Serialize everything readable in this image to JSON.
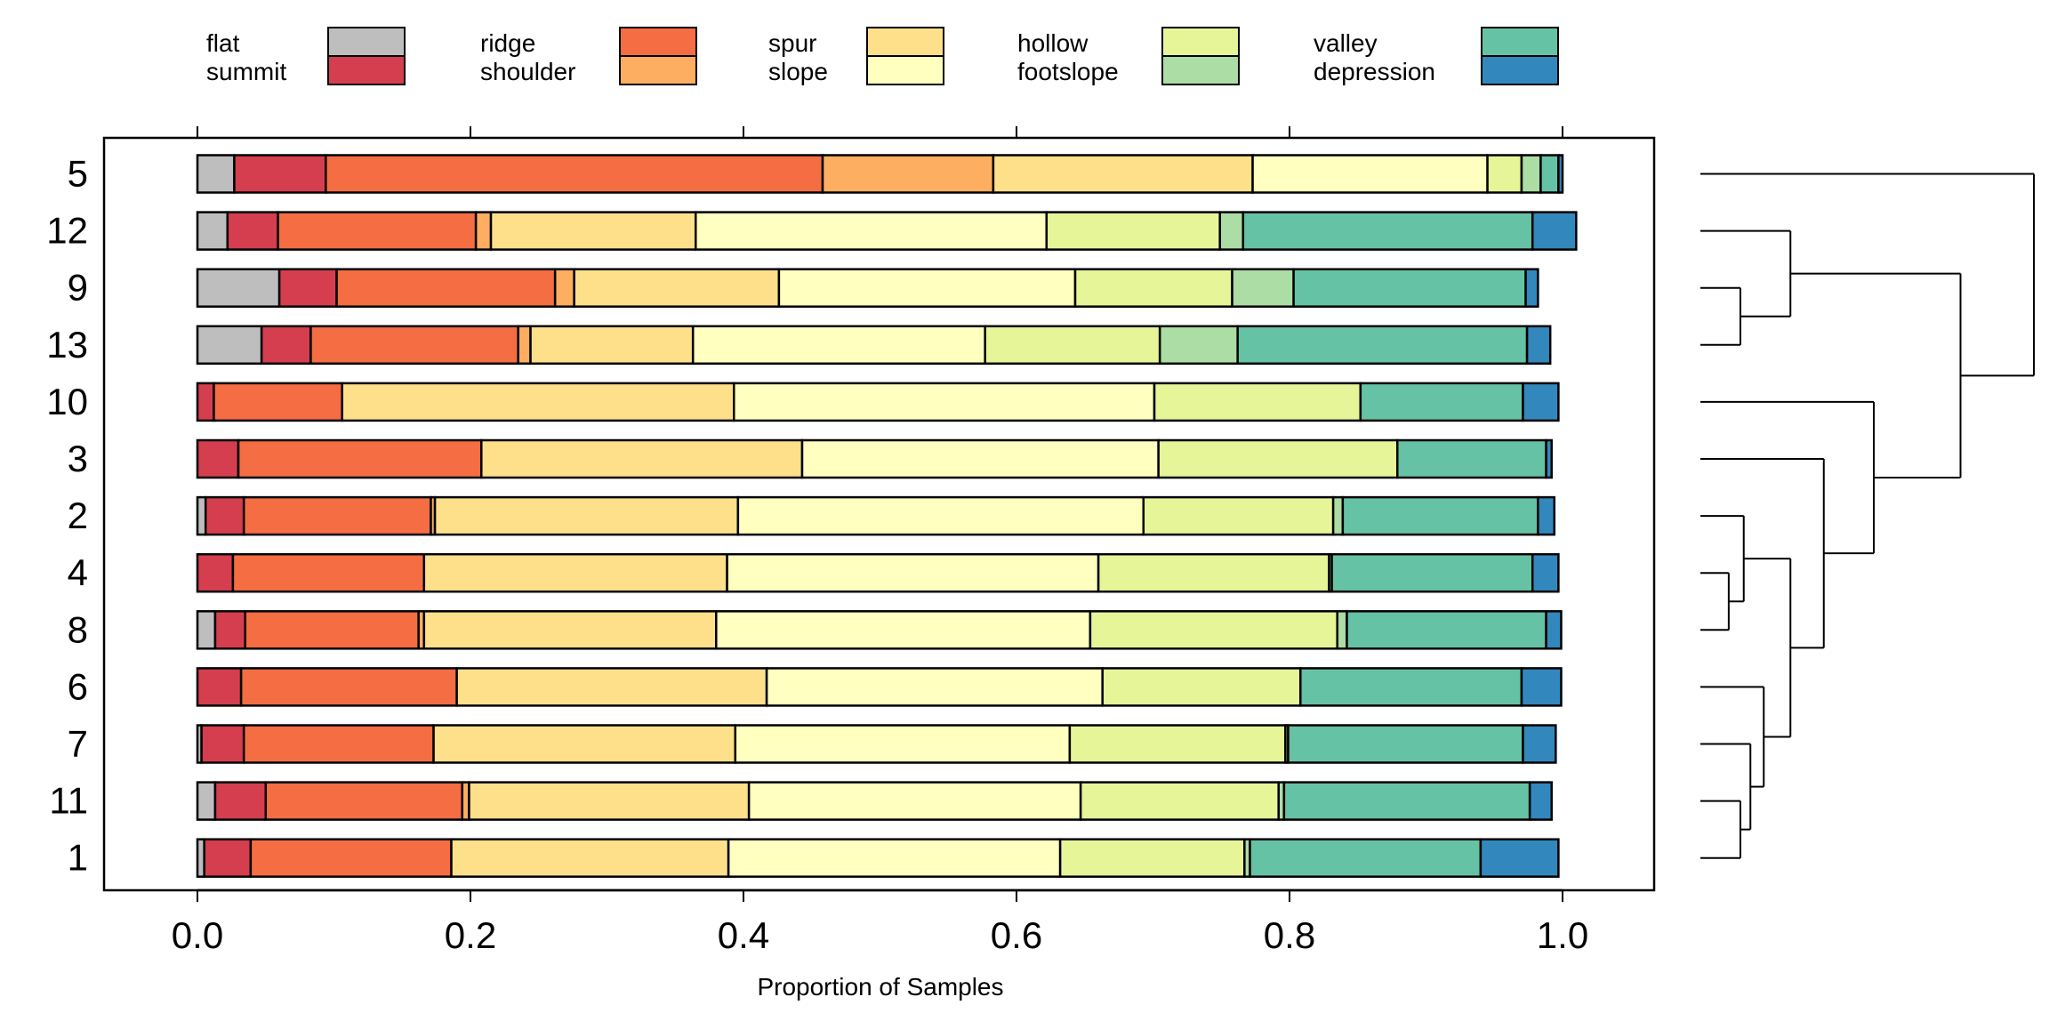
{
  "chart_data": {
    "type": "bar",
    "orientation": "horizontal",
    "stacked": true,
    "xlabel": "Proportion of Samples",
    "ylabel": "",
    "xlim": [
      0,
      1
    ],
    "x_ticks": [
      "0.0",
      "0.2",
      "0.4",
      "0.6",
      "0.8",
      "1.0"
    ],
    "x_tick_values": [
      0,
      0.2,
      0.4,
      0.6,
      0.8,
      1.0
    ],
    "legend_position": "top",
    "grid": false,
    "categories": [
      "5",
      "12",
      "9",
      "13",
      "10",
      "3",
      "2",
      "4",
      "8",
      "6",
      "7",
      "11",
      "1"
    ],
    "series": [
      {
        "name": "flat",
        "color": "#BEBEBE",
        "values": [
          0.027,
          0.022,
          0.06,
          0.047,
          0.0,
          0.0,
          0.006,
          0.0,
          0.013,
          0.0,
          0.003,
          0.013,
          0.005
        ]
      },
      {
        "name": "summit",
        "color": "#D53E4F",
        "values": [
          0.067,
          0.037,
          0.042,
          0.036,
          0.012,
          0.03,
          0.028,
          0.026,
          0.022,
          0.032,
          0.031,
          0.037,
          0.034
        ]
      },
      {
        "name": "ridge",
        "color": "#F46D43",
        "values": [
          0.364,
          0.145,
          0.16,
          0.152,
          0.094,
          0.178,
          0.137,
          0.14,
          0.127,
          0.158,
          0.139,
          0.144,
          0.147
        ]
      },
      {
        "name": "shoulder",
        "color": "#FDAE61",
        "values": [
          0.125,
          0.011,
          0.014,
          0.009,
          0.0,
          0.0,
          0.003,
          0.0,
          0.004,
          0.0,
          0.0,
          0.005,
          0.0
        ]
      },
      {
        "name": "spur",
        "color": "#FEE08B",
        "values": [
          0.19,
          0.15,
          0.15,
          0.119,
          0.287,
          0.235,
          0.222,
          0.222,
          0.214,
          0.227,
          0.221,
          0.205,
          0.203
        ]
      },
      {
        "name": "slope",
        "color": "#FFFFBF",
        "values": [
          0.172,
          0.257,
          0.217,
          0.214,
          0.308,
          0.261,
          0.297,
          0.272,
          0.274,
          0.246,
          0.245,
          0.243,
          0.243
        ]
      },
      {
        "name": "hollow",
        "color": "#E6F598",
        "values": [
          0.025,
          0.127,
          0.115,
          0.128,
          0.151,
          0.175,
          0.139,
          0.169,
          0.181,
          0.145,
          0.158,
          0.145,
          0.135
        ]
      },
      {
        "name": "footslope",
        "color": "#ABDDA4",
        "values": [
          0.014,
          0.017,
          0.045,
          0.057,
          0.0,
          0.0,
          0.007,
          0.002,
          0.007,
          0.0,
          0.002,
          0.004,
          0.004
        ]
      },
      {
        "name": "valley",
        "color": "#66C2A5",
        "values": [
          0.013,
          0.212,
          0.17,
          0.212,
          0.119,
          0.109,
          0.143,
          0.147,
          0.146,
          0.162,
          0.172,
          0.18,
          0.169
        ]
      },
      {
        "name": "depression",
        "color": "#3288BD",
        "values": [
          0.003,
          0.032,
          0.009,
          0.017,
          0.026,
          0.004,
          0.012,
          0.019,
          0.011,
          0.029,
          0.024,
          0.016,
          0.057
        ]
      }
    ],
    "legend": [
      {
        "top": "flat",
        "bottom": "summit"
      },
      {
        "top": "ridge",
        "bottom": "shoulder"
      },
      {
        "top": "spur",
        "bottom": "slope"
      },
      {
        "top": "hollow",
        "bottom": "footslope"
      },
      {
        "top": "valley",
        "bottom": "depression"
      }
    ],
    "dendrogram": {
      "leaf_order": [
        "5",
        "12",
        "9",
        "13",
        "10",
        "3",
        "2",
        "4",
        "8",
        "6",
        "7",
        "11",
        "1"
      ],
      "merges": [
        {
          "children": [
            "9",
            "13"
          ],
          "height": 0.12
        },
        {
          "children": [
            "12",
            "m0"
          ],
          "height": 0.27
        },
        {
          "children": [
            "4",
            "8"
          ],
          "height": 0.085
        },
        {
          "children": [
            "11",
            "1"
          ],
          "height": 0.12
        },
        {
          "children": [
            "2",
            "m2"
          ],
          "height": 0.13
        },
        {
          "children": [
            "7",
            "m3"
          ],
          "height": 0.15
        },
        {
          "children": [
            "6",
            "m5"
          ],
          "height": 0.19
        },
        {
          "children": [
            "m4",
            "m6"
          ],
          "height": 0.27
        },
        {
          "children": [
            "3",
            "m7"
          ],
          "height": 0.37
        },
        {
          "children": [
            "10",
            "m8"
          ],
          "height": 0.52
        },
        {
          "children": [
            "m1",
            "m9"
          ],
          "height": 0.78
        },
        {
          "children": [
            "5",
            "m10"
          ],
          "height": 1.0
        }
      ]
    }
  }
}
